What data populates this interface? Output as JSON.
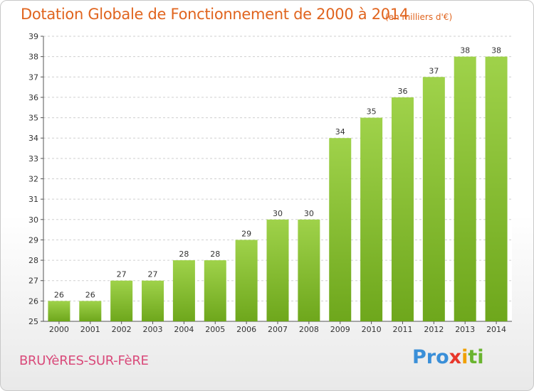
{
  "header": {
    "title": "Dotation Globale de Fonctionnement de 2000 à 2014",
    "subtitle": "(en milliers d'€)"
  },
  "footer": {
    "commune": "BRUYèRES-SUR-FèRE",
    "logo_parts": [
      "Pro",
      "x",
      "i",
      "ti"
    ]
  },
  "colors": {
    "bar_light": "#9fd24a",
    "bar_dark": "#6ea71c",
    "title": "#e0641e",
    "commune": "#d94a7a"
  },
  "chart_data": {
    "type": "bar",
    "title": "Dotation Globale de Fonctionnement de 2000 à 2014",
    "xlabel": "",
    "ylabel": "",
    "ylim": [
      25,
      39
    ],
    "yticks": [
      25,
      26,
      27,
      28,
      29,
      30,
      31,
      32,
      33,
      34,
      35,
      36,
      37,
      38,
      39
    ],
    "grid": true,
    "categories": [
      "2000",
      "2001",
      "2002",
      "2003",
      "2004",
      "2005",
      "2006",
      "2007",
      "2008",
      "2009",
      "2010",
      "2011",
      "2012",
      "2013",
      "2014"
    ],
    "values": [
      26,
      26,
      27,
      27,
      28,
      28,
      29,
      30,
      30,
      34,
      35,
      36,
      37,
      38,
      38
    ]
  }
}
